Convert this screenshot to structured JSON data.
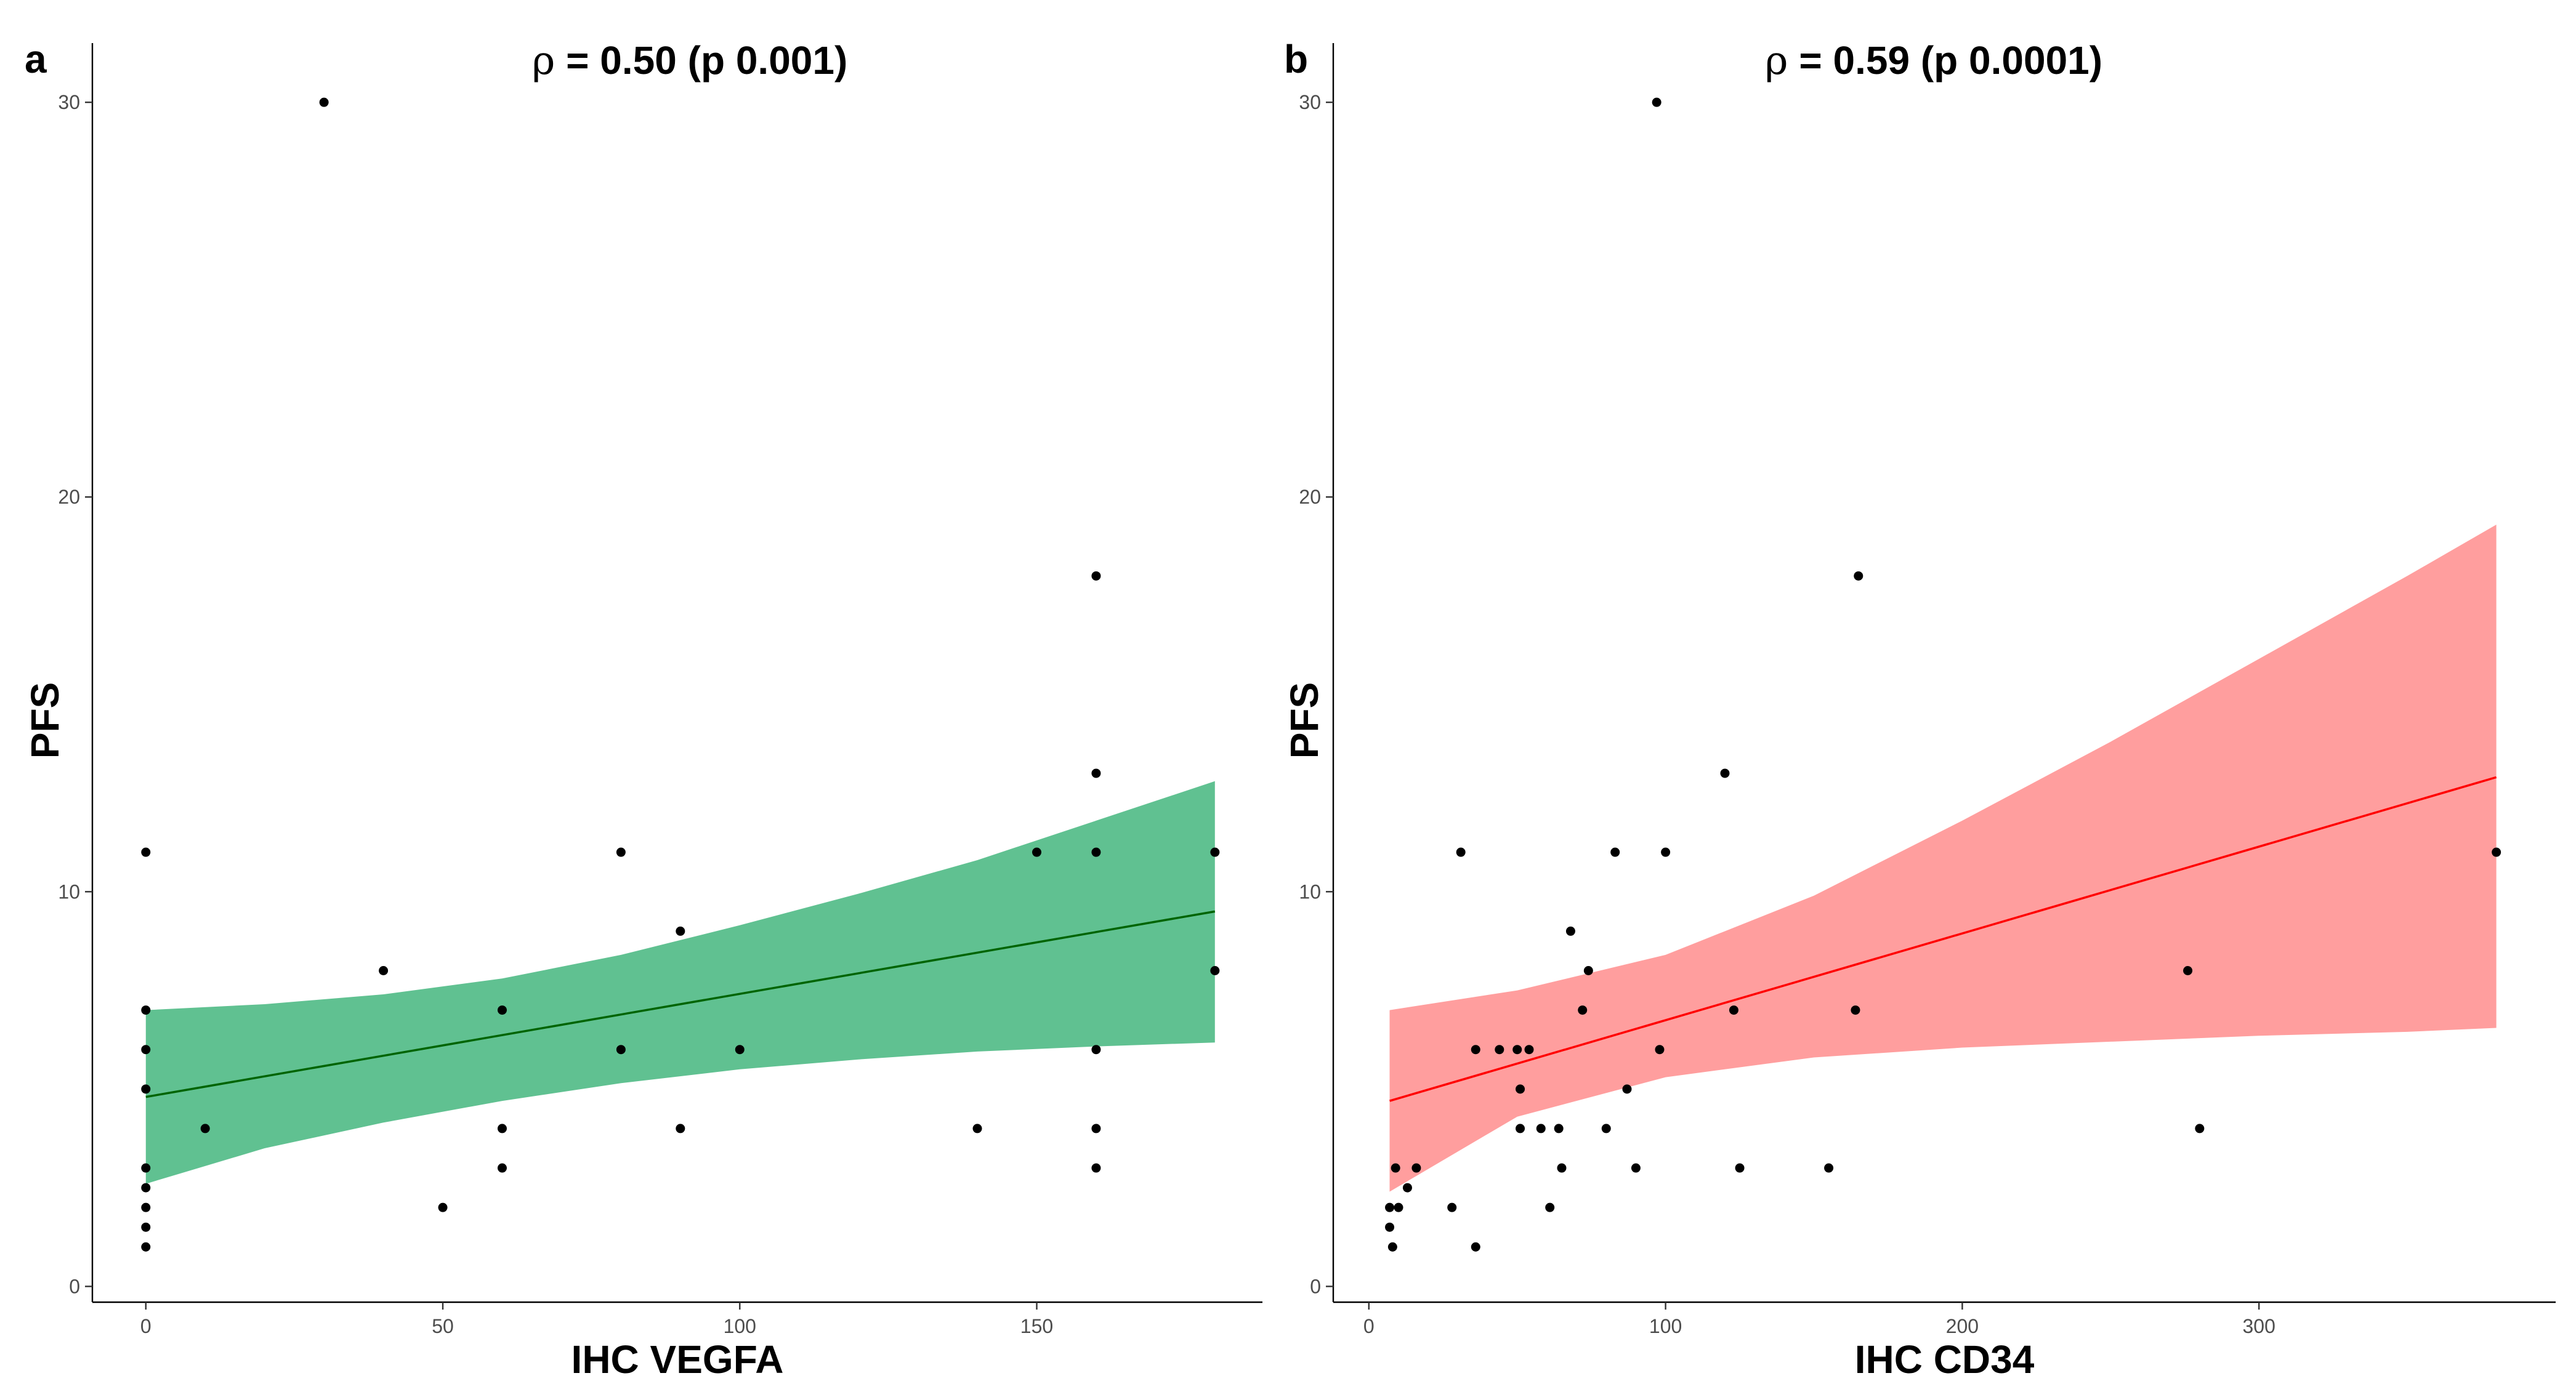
{
  "chart_data": [
    {
      "type": "scatter",
      "panel_label": "a",
      "title": "ρ = 0.50 (p 0.001)",
      "title_symbol": "ρ",
      "title_rest": " = 0.50 (p 0.001)",
      "xlabel": "IHC VEGFA",
      "ylabel": "PFS",
      "xlim": [
        -9,
        188
      ],
      "ylim": [
        -0.4,
        31.5
      ],
      "xticks": [
        0,
        50,
        100,
        150
      ],
      "xtick_labels": [
        "0",
        "50",
        "100",
        "150"
      ],
      "yticks": [
        0,
        10,
        20,
        30
      ],
      "ytick_labels": [
        "0",
        "10",
        "20",
        "30"
      ],
      "grid": false,
      "fit": {
        "x": [
          0,
          180
        ],
        "y": [
          4.8,
          9.5
        ],
        "color": "#006400"
      },
      "band": {
        "x": [
          0,
          20,
          40,
          60,
          80,
          100,
          120,
          140,
          160,
          180
        ],
        "upper": [
          7.0,
          7.15,
          7.4,
          7.8,
          8.4,
          9.15,
          9.95,
          10.8,
          11.8,
          12.8
        ],
        "lower": [
          2.6,
          3.5,
          4.15,
          4.7,
          5.15,
          5.5,
          5.75,
          5.95,
          6.08,
          6.18
        ],
        "color": "#2eae6e",
        "opacity": 0.76
      },
      "points": [
        {
          "x": 0,
          "y": 11
        },
        {
          "x": 0,
          "y": 7
        },
        {
          "x": 0,
          "y": 6
        },
        {
          "x": 0,
          "y": 5
        },
        {
          "x": 0,
          "y": 3
        },
        {
          "x": 0,
          "y": 2.5
        },
        {
          "x": 0,
          "y": 2
        },
        {
          "x": 0,
          "y": 1.5
        },
        {
          "x": 0,
          "y": 1
        },
        {
          "x": 10,
          "y": 4
        },
        {
          "x": 30,
          "y": 30
        },
        {
          "x": 40,
          "y": 8
        },
        {
          "x": 50,
          "y": 2
        },
        {
          "x": 60,
          "y": 7
        },
        {
          "x": 60,
          "y": 4
        },
        {
          "x": 60,
          "y": 3
        },
        {
          "x": 80,
          "y": 11
        },
        {
          "x": 80,
          "y": 6
        },
        {
          "x": 90,
          "y": 9
        },
        {
          "x": 90,
          "y": 4
        },
        {
          "x": 100,
          "y": 6
        },
        {
          "x": 140,
          "y": 4
        },
        {
          "x": 150,
          "y": 11
        },
        {
          "x": 160,
          "y": 18
        },
        {
          "x": 160,
          "y": 13
        },
        {
          "x": 160,
          "y": 11
        },
        {
          "x": 160,
          "y": 6
        },
        {
          "x": 160,
          "y": 4
        },
        {
          "x": 160,
          "y": 3
        },
        {
          "x": 180,
          "y": 11
        },
        {
          "x": 180,
          "y": 8
        }
      ],
      "point_color": "#000000"
    },
    {
      "type": "scatter",
      "panel_label": "b",
      "title": "ρ = 0.59 (p 0.0001)",
      "title_symbol": "ρ",
      "title_rest": " = 0.59 (p 0.0001)",
      "xlabel": "IHC CD34",
      "ylabel": "PFS",
      "xlim": [
        -12,
        400
      ],
      "ylim": [
        -0.4,
        31.5
      ],
      "xticks": [
        0,
        100,
        200,
        300
      ],
      "xtick_labels": [
        "0",
        "100",
        "200",
        "300"
      ],
      "yticks": [
        0,
        10,
        20,
        30
      ],
      "ytick_labels": [
        "0",
        "10",
        "20",
        "30"
      ],
      "grid": false,
      "fit": {
        "x": [
          7,
          380
        ],
        "y": [
          4.7,
          12.9
        ],
        "color": "#ff0000"
      },
      "band": {
        "x": [
          7,
          50,
          100,
          150,
          200,
          250,
          300,
          350,
          380
        ],
        "upper": [
          7.0,
          7.5,
          8.4,
          9.9,
          11.8,
          13.8,
          15.9,
          18.0,
          19.3
        ],
        "lower": [
          2.4,
          4.3,
          5.3,
          5.8,
          6.05,
          6.2,
          6.35,
          6.45,
          6.55
        ],
        "color": "#ff8080",
        "opacity": 0.76
      },
      "points": [
        {
          "x": 7,
          "y": 2
        },
        {
          "x": 7,
          "y": 1.5
        },
        {
          "x": 8,
          "y": 1
        },
        {
          "x": 9,
          "y": 3
        },
        {
          "x": 10,
          "y": 2
        },
        {
          "x": 13,
          "y": 2.5
        },
        {
          "x": 16,
          "y": 3
        },
        {
          "x": 28,
          "y": 2
        },
        {
          "x": 31,
          "y": 11
        },
        {
          "x": 36,
          "y": 6
        },
        {
          "x": 36,
          "y": 1
        },
        {
          "x": 44,
          "y": 6
        },
        {
          "x": 50,
          "y": 6
        },
        {
          "x": 51,
          "y": 5
        },
        {
          "x": 51,
          "y": 4
        },
        {
          "x": 54,
          "y": 6
        },
        {
          "x": 58,
          "y": 4
        },
        {
          "x": 61,
          "y": 2
        },
        {
          "x": 64,
          "y": 4
        },
        {
          "x": 65,
          "y": 3
        },
        {
          "x": 68,
          "y": 9
        },
        {
          "x": 72,
          "y": 7
        },
        {
          "x": 74,
          "y": 8
        },
        {
          "x": 80,
          "y": 4
        },
        {
          "x": 83,
          "y": 11
        },
        {
          "x": 87,
          "y": 5
        },
        {
          "x": 90,
          "y": 3
        },
        {
          "x": 97,
          "y": 30
        },
        {
          "x": 98,
          "y": 6
        },
        {
          "x": 100,
          "y": 11
        },
        {
          "x": 120,
          "y": 13
        },
        {
          "x": 123,
          "y": 7
        },
        {
          "x": 125,
          "y": 3
        },
        {
          "x": 155,
          "y": 3
        },
        {
          "x": 164,
          "y": 7
        },
        {
          "x": 165,
          "y": 18
        },
        {
          "x": 276,
          "y": 8
        },
        {
          "x": 280,
          "y": 4
        },
        {
          "x": 380,
          "y": 11
        }
      ],
      "point_color": "#000000"
    }
  ]
}
